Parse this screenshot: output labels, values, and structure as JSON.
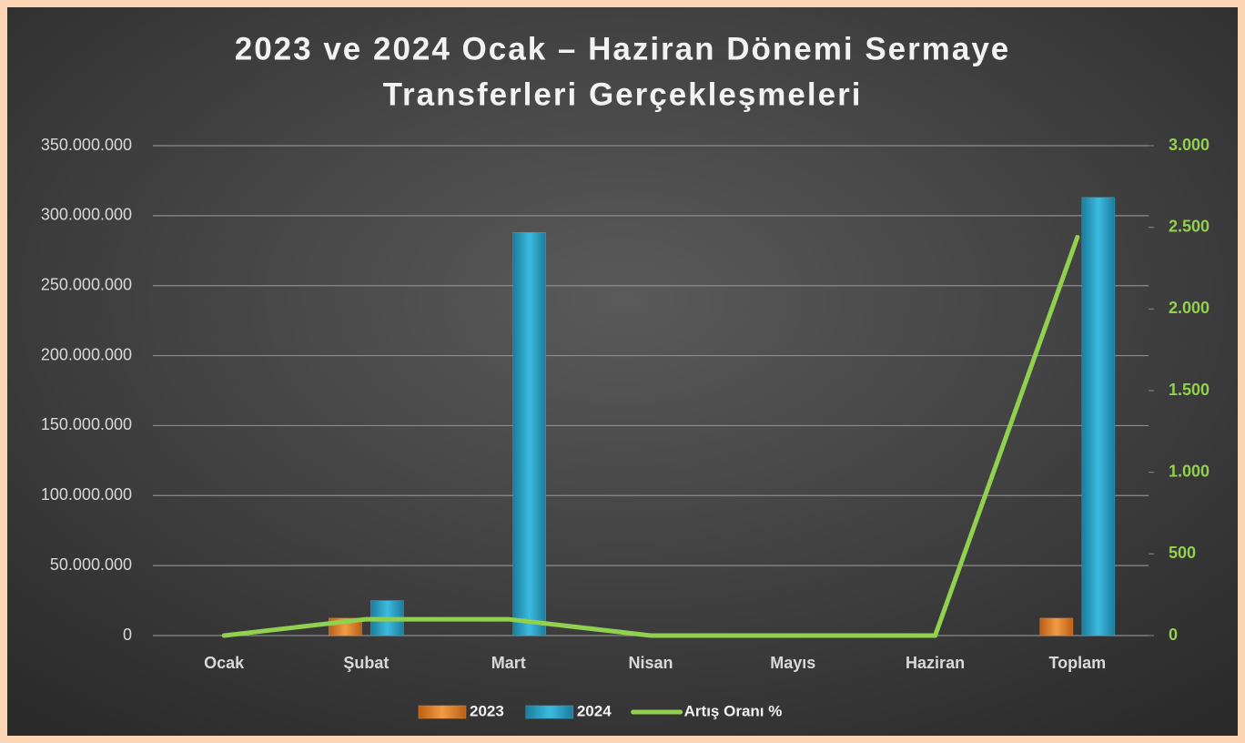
{
  "chart_data": {
    "type": "bar",
    "title": [
      "2023 ve 2024 Ocak – Haziran Dönemi Sermaye",
      "Transferleri Gerçekleşmeleri"
    ],
    "categories": [
      "Ocak",
      "Şubat",
      "Mart",
      "Nisan",
      "Mayıs",
      "Haziran",
      "Toplam"
    ],
    "series": [
      {
        "name": "2023",
        "type": "bar",
        "color": "#e8892f",
        "values": [
          0,
          12400000,
          0,
          0,
          0,
          0,
          12400000
        ]
      },
      {
        "name": "2024",
        "type": "bar",
        "color": "#31a9cf",
        "values": [
          0,
          25000000,
          288000000,
          0,
          0,
          0,
          313000000
        ]
      },
      {
        "name": "Artış Oranı %",
        "type": "line",
        "axis": "y2",
        "color": "#92d050",
        "values": [
          0,
          100,
          100,
          0,
          0,
          0,
          2440
        ]
      }
    ],
    "ylim": [
      0,
      350000000
    ],
    "yticks": [
      0,
      {
        "value": 50000000,
        "label": "50.000.000"
      },
      {
        "value": 100000000,
        "label": "100.000.000"
      },
      {
        "value": 150000000,
        "label": "150.000.000"
      },
      {
        "value": 200000000,
        "label": "200.000.000"
      },
      {
        "value": 250000000,
        "label": "250.000.000"
      },
      {
        "value": 300000000,
        "label": "300.000.000"
      },
      {
        "value": 350000000,
        "label": "350.000.000"
      }
    ],
    "y2lim": [
      0,
      3000
    ],
    "y2ticks": [
      0,
      500,
      {
        "value": 1000,
        "label": "1.000"
      },
      {
        "value": 1500,
        "label": "1.500"
      },
      {
        "value": 2000,
        "label": "2.000"
      },
      {
        "value": 2500,
        "label": "2.500"
      },
      {
        "value": 3000,
        "label": "3.000"
      }
    ],
    "grid": true,
    "legend": "bottom"
  }
}
